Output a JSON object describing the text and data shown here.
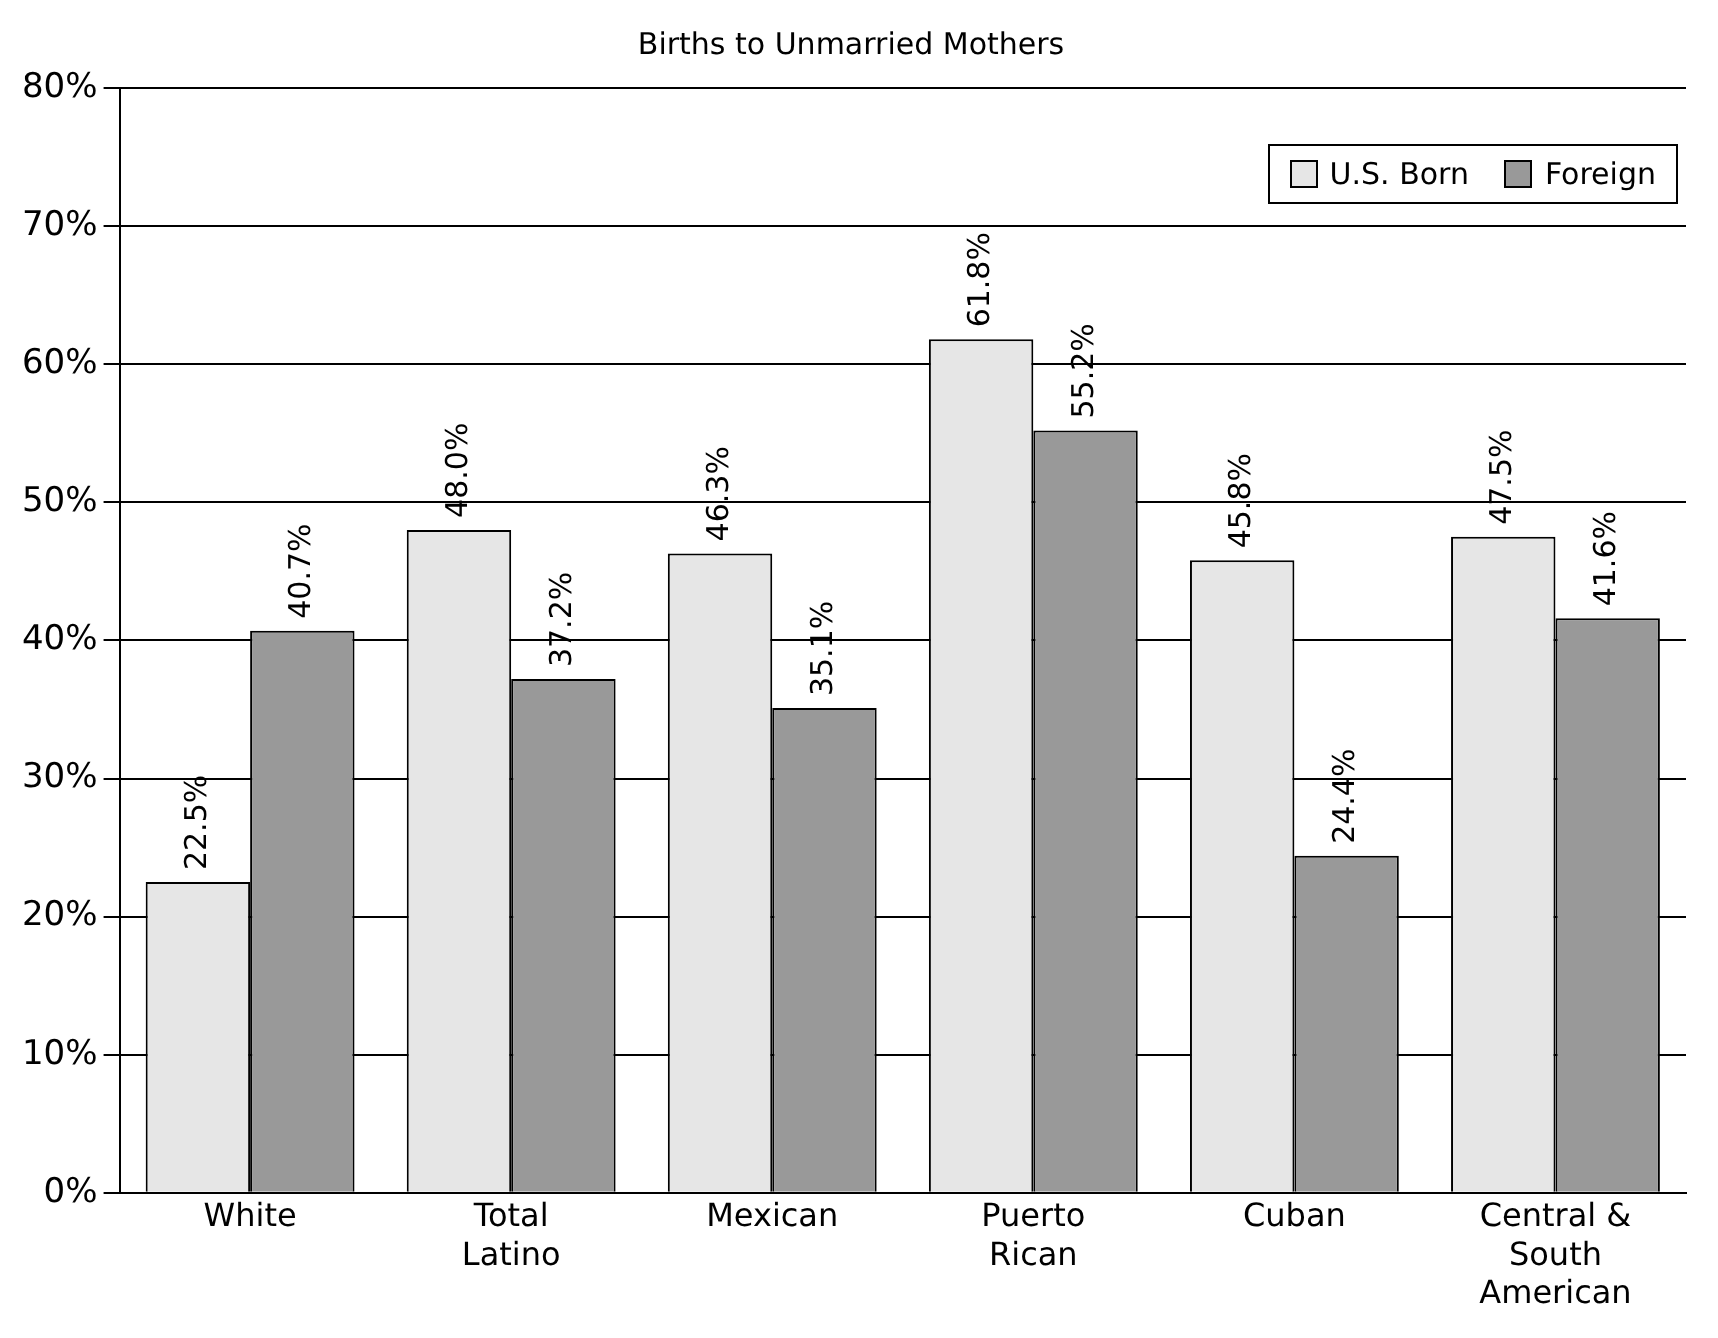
{
  "chart_data": {
    "type": "bar",
    "title": "Births to Unmarried Mothers",
    "categories": [
      "White",
      "Total Latino",
      "Mexican",
      "Puerto Rican",
      "Cuban",
      "Central & South American"
    ],
    "series": [
      {
        "name": "U.S. Born",
        "color": "#e6e6e6",
        "values": [
          22.5,
          48.0,
          46.3,
          61.8,
          45.8,
          47.5
        ],
        "value_labels": [
          "22.5%",
          "48.0%",
          "46.3%",
          "61.8%",
          "45.8%",
          "47.5%"
        ]
      },
      {
        "name": "Foreign",
        "color": "#999999",
        "values": [
          40.7,
          37.2,
          35.1,
          55.2,
          24.4,
          41.6
        ],
        "value_labels": [
          "40.7%",
          "37.2%",
          "35.1%",
          "55.2%",
          "24.4%",
          "41.6%"
        ]
      }
    ],
    "ylim": [
      0,
      80
    ],
    "yticks": [
      {
        "value": 0,
        "label": "0%"
      },
      {
        "value": 10,
        "label": "10%"
      },
      {
        "value": 20,
        "label": "20%"
      },
      {
        "value": 30,
        "label": "30%"
      },
      {
        "value": 40,
        "label": "40%"
      },
      {
        "value": 50,
        "label": "50%"
      },
      {
        "value": 60,
        "label": "60%"
      },
      {
        "value": 70,
        "label": "70%"
      },
      {
        "value": 80,
        "label": "80%"
      }
    ],
    "grid": "y",
    "legend": "top right"
  }
}
